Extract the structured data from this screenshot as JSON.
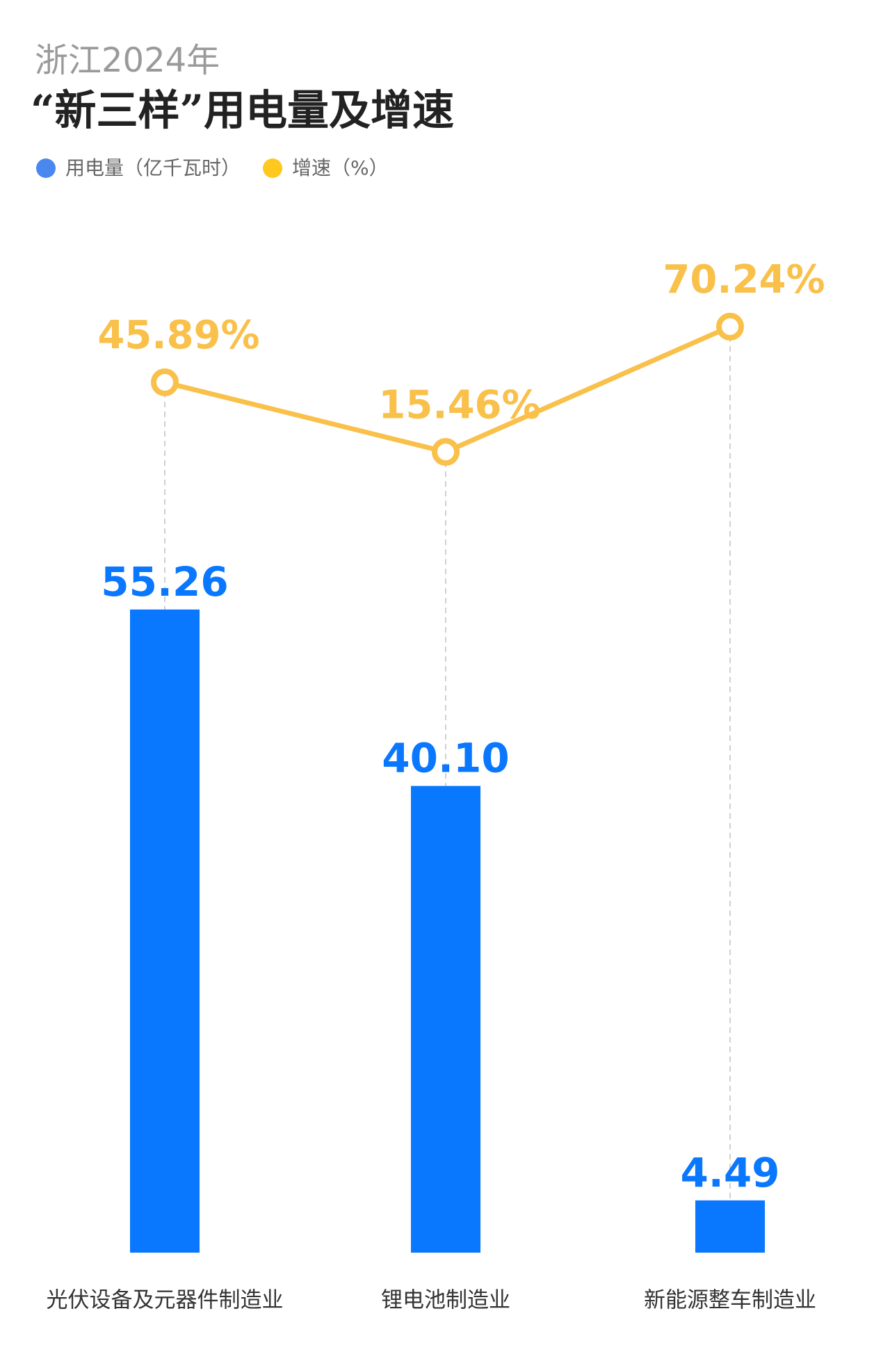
{
  "chart_data": {
    "type": "combo",
    "subtitle": "浙江2024年",
    "title": "“新三样”用电量及增速",
    "categories": [
      "光伏设备及元器件制造业",
      "锂电池制造业",
      "新能源整车制造业"
    ],
    "series": [
      {
        "name": "用电量（亿千瓦时）",
        "type": "bar",
        "color": "#0a77ff",
        "legend_color": "#4a88f0",
        "values": [
          55.26,
          40.1,
          4.49
        ],
        "value_labels": [
          "55.26",
          "40.10",
          "4.49"
        ]
      },
      {
        "name": "增速（%）",
        "type": "line",
        "axis": "y2",
        "color": "#f9c04a",
        "legend_color": "#ffc81e",
        "values": [
          45.89,
          15.46,
          70.24
        ],
        "value_labels": [
          "45.89%",
          "15.46%",
          "70.24%"
        ]
      }
    ],
    "ylim": [
      0,
      70
    ],
    "y2lim": [
      0,
      100
    ]
  }
}
